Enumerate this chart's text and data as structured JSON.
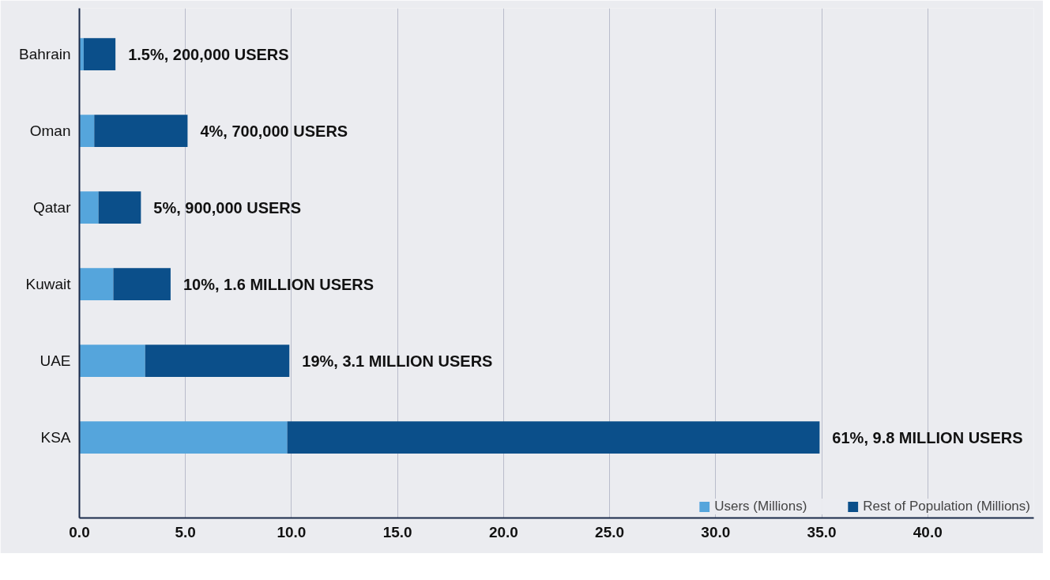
{
  "chart_data": {
    "type": "bar",
    "orientation": "horizontal",
    "stacked": true,
    "categories": [
      "Bahrain",
      "Oman",
      "Qatar",
      "Kuwait",
      "UAE",
      "KSA"
    ],
    "series": [
      {
        "name": "Users (Millions)",
        "color": "#55a5dc",
        "values": [
          0.2,
          0.7,
          0.9,
          1.6,
          3.1,
          9.8
        ]
      },
      {
        "name": "Rest of Population (Millions)",
        "color": "#0b4f8a",
        "values": [
          1.5,
          4.4,
          2.0,
          2.7,
          6.8,
          25.1
        ]
      }
    ],
    "totals": [
      "1.5%, 200,000 USERS",
      "4%, 700,000 USERS",
      "5%, 900,000 USERS",
      "10%, 1.6 MILLION USERS",
      "19%, 3.1 MILLION USERS",
      "61%, 9.8 MILLION USERS"
    ],
    "xlim": [
      0,
      45
    ],
    "xticks": [
      {
        "value": 0,
        "label": "0.0"
      },
      {
        "value": 5,
        "label": "5.0"
      },
      {
        "value": 10,
        "label": "10.0"
      },
      {
        "value": 15,
        "label": "15.0"
      },
      {
        "value": 20,
        "label": "20.0"
      },
      {
        "value": 25,
        "label": "25.0"
      },
      {
        "value": 30,
        "label": "30.0"
      },
      {
        "value": 35,
        "label": "35.0"
      },
      {
        "value": 40,
        "label": "40.0"
      }
    ],
    "grid": "x",
    "legend": "bottom right"
  }
}
